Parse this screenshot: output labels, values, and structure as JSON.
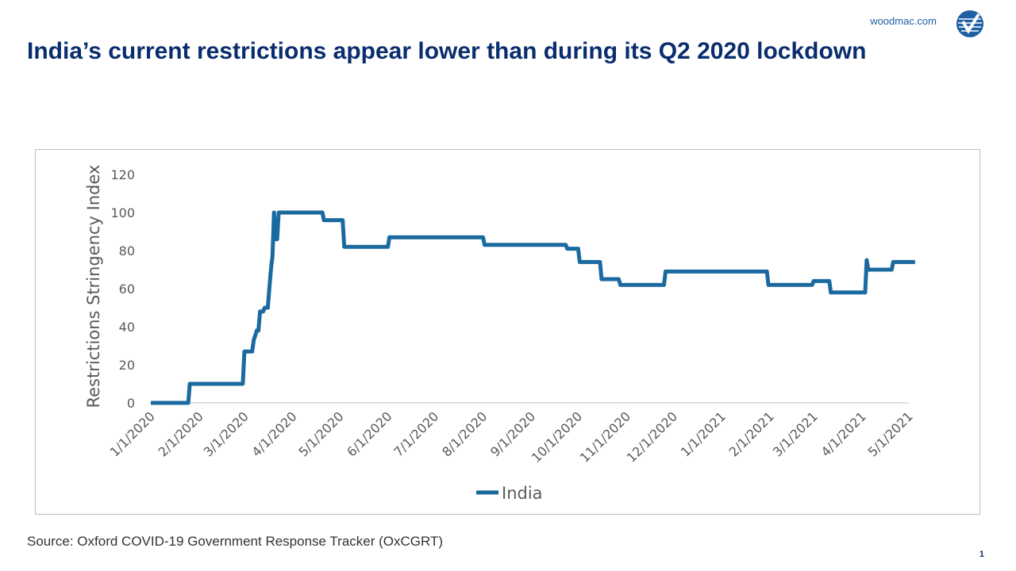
{
  "header": {
    "brand": "woodmac.com",
    "title": "India’s current restrictions appear lower than during its Q2 2020 lockdown"
  },
  "footer": {
    "source": "Source: Oxford COVID-19 Government Response Tracker (OxCGRT)",
    "page_number": "1"
  },
  "colors": {
    "title": "#0a2d6e",
    "series": "#1a6aa0",
    "brand": "#1f5fa3"
  },
  "icons": {
    "logo": "woodmac-logo-icon"
  },
  "chart_data": {
    "type": "line",
    "title": "",
    "xlabel": "",
    "ylabel": "Restrictions Stringency Index",
    "ylim": [
      0,
      120
    ],
    "yticks": [
      0,
      20,
      40,
      60,
      80,
      100,
      120
    ],
    "xlim": [
      "2020-01-01",
      "2021-05-01"
    ],
    "xticks": [
      "1/1/2020",
      "2/1/2020",
      "3/1/2020",
      "4/1/2020",
      "5/1/2020",
      "6/1/2020",
      "7/1/2020",
      "8/1/2020",
      "9/1/2020",
      "10/1/2020",
      "11/1/2020",
      "12/1/2020",
      "1/1/2021",
      "2/1/2021",
      "3/1/2021",
      "4/1/2021",
      "5/1/2021"
    ],
    "legend": "bottom",
    "grid": false,
    "series": [
      {
        "name": "India",
        "x": [
          "2020-01-01",
          "2020-01-25",
          "2020-01-26",
          "2020-02-29",
          "2020-03-01",
          "2020-03-06",
          "2020-03-07",
          "2020-03-09",
          "2020-03-10",
          "2020-03-11",
          "2020-03-13",
          "2020-03-14",
          "2020-03-16",
          "2020-03-17",
          "2020-03-18",
          "2020-03-19",
          "2020-03-20",
          "2020-03-21",
          "2020-03-22",
          "2020-03-23",
          "2020-03-24",
          "2020-04-20",
          "2020-04-21",
          "2020-05-03",
          "2020-05-04",
          "2020-06-01",
          "2020-06-02",
          "2020-08-01",
          "2020-08-02",
          "2020-09-23",
          "2020-09-24",
          "2020-10-01",
          "2020-10-02",
          "2020-10-15",
          "2020-10-16",
          "2020-10-27",
          "2020-10-28",
          "2020-11-25",
          "2020-11-26",
          "2021-01-30",
          "2021-01-31",
          "2021-02-28",
          "2021-03-01",
          "2021-03-11",
          "2021-03-12",
          "2021-04-03",
          "2021-04-04",
          "2021-04-05",
          "2021-04-06",
          "2021-04-20",
          "2021-04-21",
          "2021-05-05"
        ],
        "values": [
          0,
          0,
          10,
          10,
          27,
          27,
          33,
          38,
          38,
          48,
          48,
          50,
          50,
          60,
          70,
          77,
          100,
          86,
          86,
          100,
          100,
          100,
          96,
          96,
          82,
          82,
          87,
          87,
          83,
          83,
          81,
          81,
          74,
          74,
          65,
          65,
          62,
          62,
          69,
          69,
          62,
          62,
          64,
          64,
          58,
          58,
          75,
          70,
          70,
          70,
          74,
          74
        ]
      }
    ]
  }
}
